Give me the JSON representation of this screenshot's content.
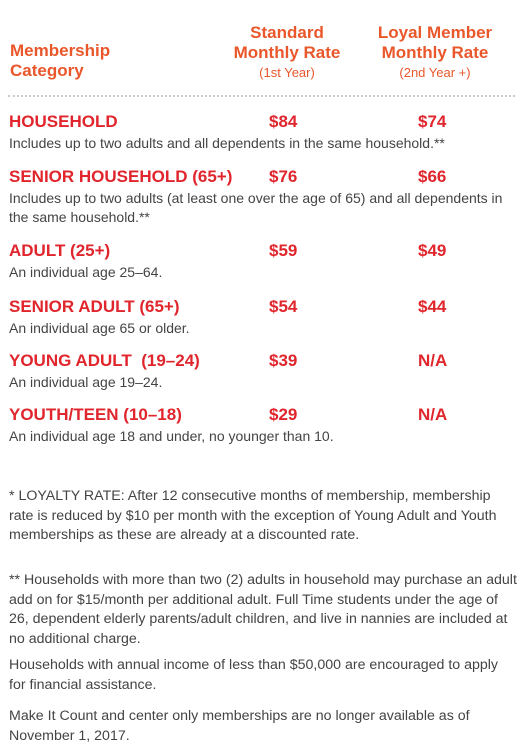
{
  "header": {
    "category": [
      "Membership",
      "Category"
    ],
    "standard": [
      "Standard",
      "Monthly Rate",
      "(1st Year)"
    ],
    "loyal": [
      "Loyal Member",
      "Monthly Rate",
      "(2nd Year +)"
    ]
  },
  "table": {
    "rows": [
      [
        "HOUSEHOLD",
        "$84",
        "$74",
        "Includes up to two adults and all dependents in the same household.**"
      ],
      [
        "SENIOR HOUSEHOLD (65+)",
        "$76",
        "$66",
        "Includes up to two adults (at least one over the age of 65) and all dependents in the same household.**"
      ],
      [
        "ADULT (25+)",
        "$59",
        "$49",
        "An individual age 25–64."
      ],
      [
        "SENIOR ADULT (65+)",
        "$54",
        "$44",
        "An individual age 65 or older."
      ],
      [
        "YOUNG ADULT  (19–24)",
        "$39",
        "N/A",
        "An individual age 19–24."
      ],
      [
        "YOUTH/TEEN (10–18)",
        "$29",
        "N/A",
        "An individual age 18 and under, no younger than 10."
      ]
    ]
  },
  "notes": [
    "* LOYALTY RATE: After 12 consecutive months of membership, membership rate is reduced by $10 per month with the exception of Young Adult and Youth memberships as these are already at a discounted rate.",
    "** Households with more than two (2) adults in household may purchase an adult add on for $15/month per additional adult.  Full Time students under the age of 26, dependent elderly parents/adult children, and live in nannies are included at no additional charge.",
    "Households with annual income of less than $50,000 are encouraged to apply for financial assistance.",
    "Make It Count and center only memberships are no longer available as of November 1, 2017."
  ]
}
